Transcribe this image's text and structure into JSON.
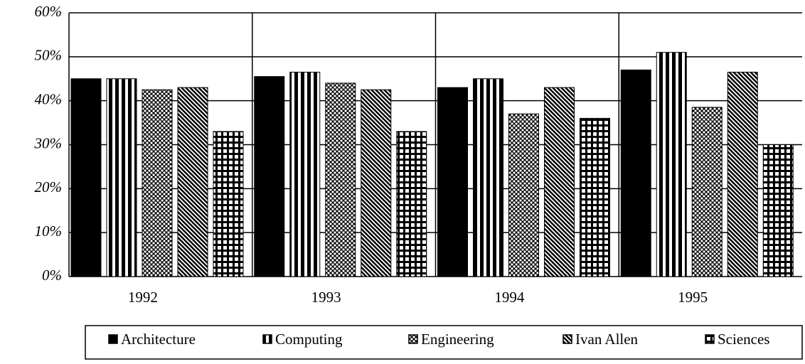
{
  "chart_data": {
    "type": "bar",
    "categories": [
      "1992",
      "1993",
      "1994",
      "1995"
    ],
    "series": [
      {
        "name": "Architecture",
        "color": "#000000",
        "values": [
          45,
          45.5,
          43,
          47
        ]
      },
      {
        "name": "Computing",
        "color": "#000000",
        "values": [
          45,
          46.5,
          45,
          51
        ]
      },
      {
        "name": "Engineering",
        "color": "#000000",
        "values": [
          42.5,
          44,
          37,
          38.5
        ]
      },
      {
        "name": "Ivan Allen",
        "color": "#000000",
        "values": [
          43,
          42.5,
          43,
          46.5
        ]
      },
      {
        "name": "Sciences",
        "color": "#000000",
        "values": [
          33,
          33,
          36,
          30
        ]
      }
    ],
    "ylim": [
      0,
      60
    ],
    "yticks": [
      {
        "value": 0,
        "label": "0%"
      },
      {
        "value": 10,
        "label": "10%"
      },
      {
        "value": 20,
        "label": "20%"
      },
      {
        "value": 30,
        "label": "30%"
      },
      {
        "value": 40,
        "label": "40%"
      },
      {
        "value": 50,
        "label": "50%"
      },
      {
        "value": 60,
        "label": "60%"
      }
    ],
    "grid": true,
    "legend": "bottom"
  }
}
